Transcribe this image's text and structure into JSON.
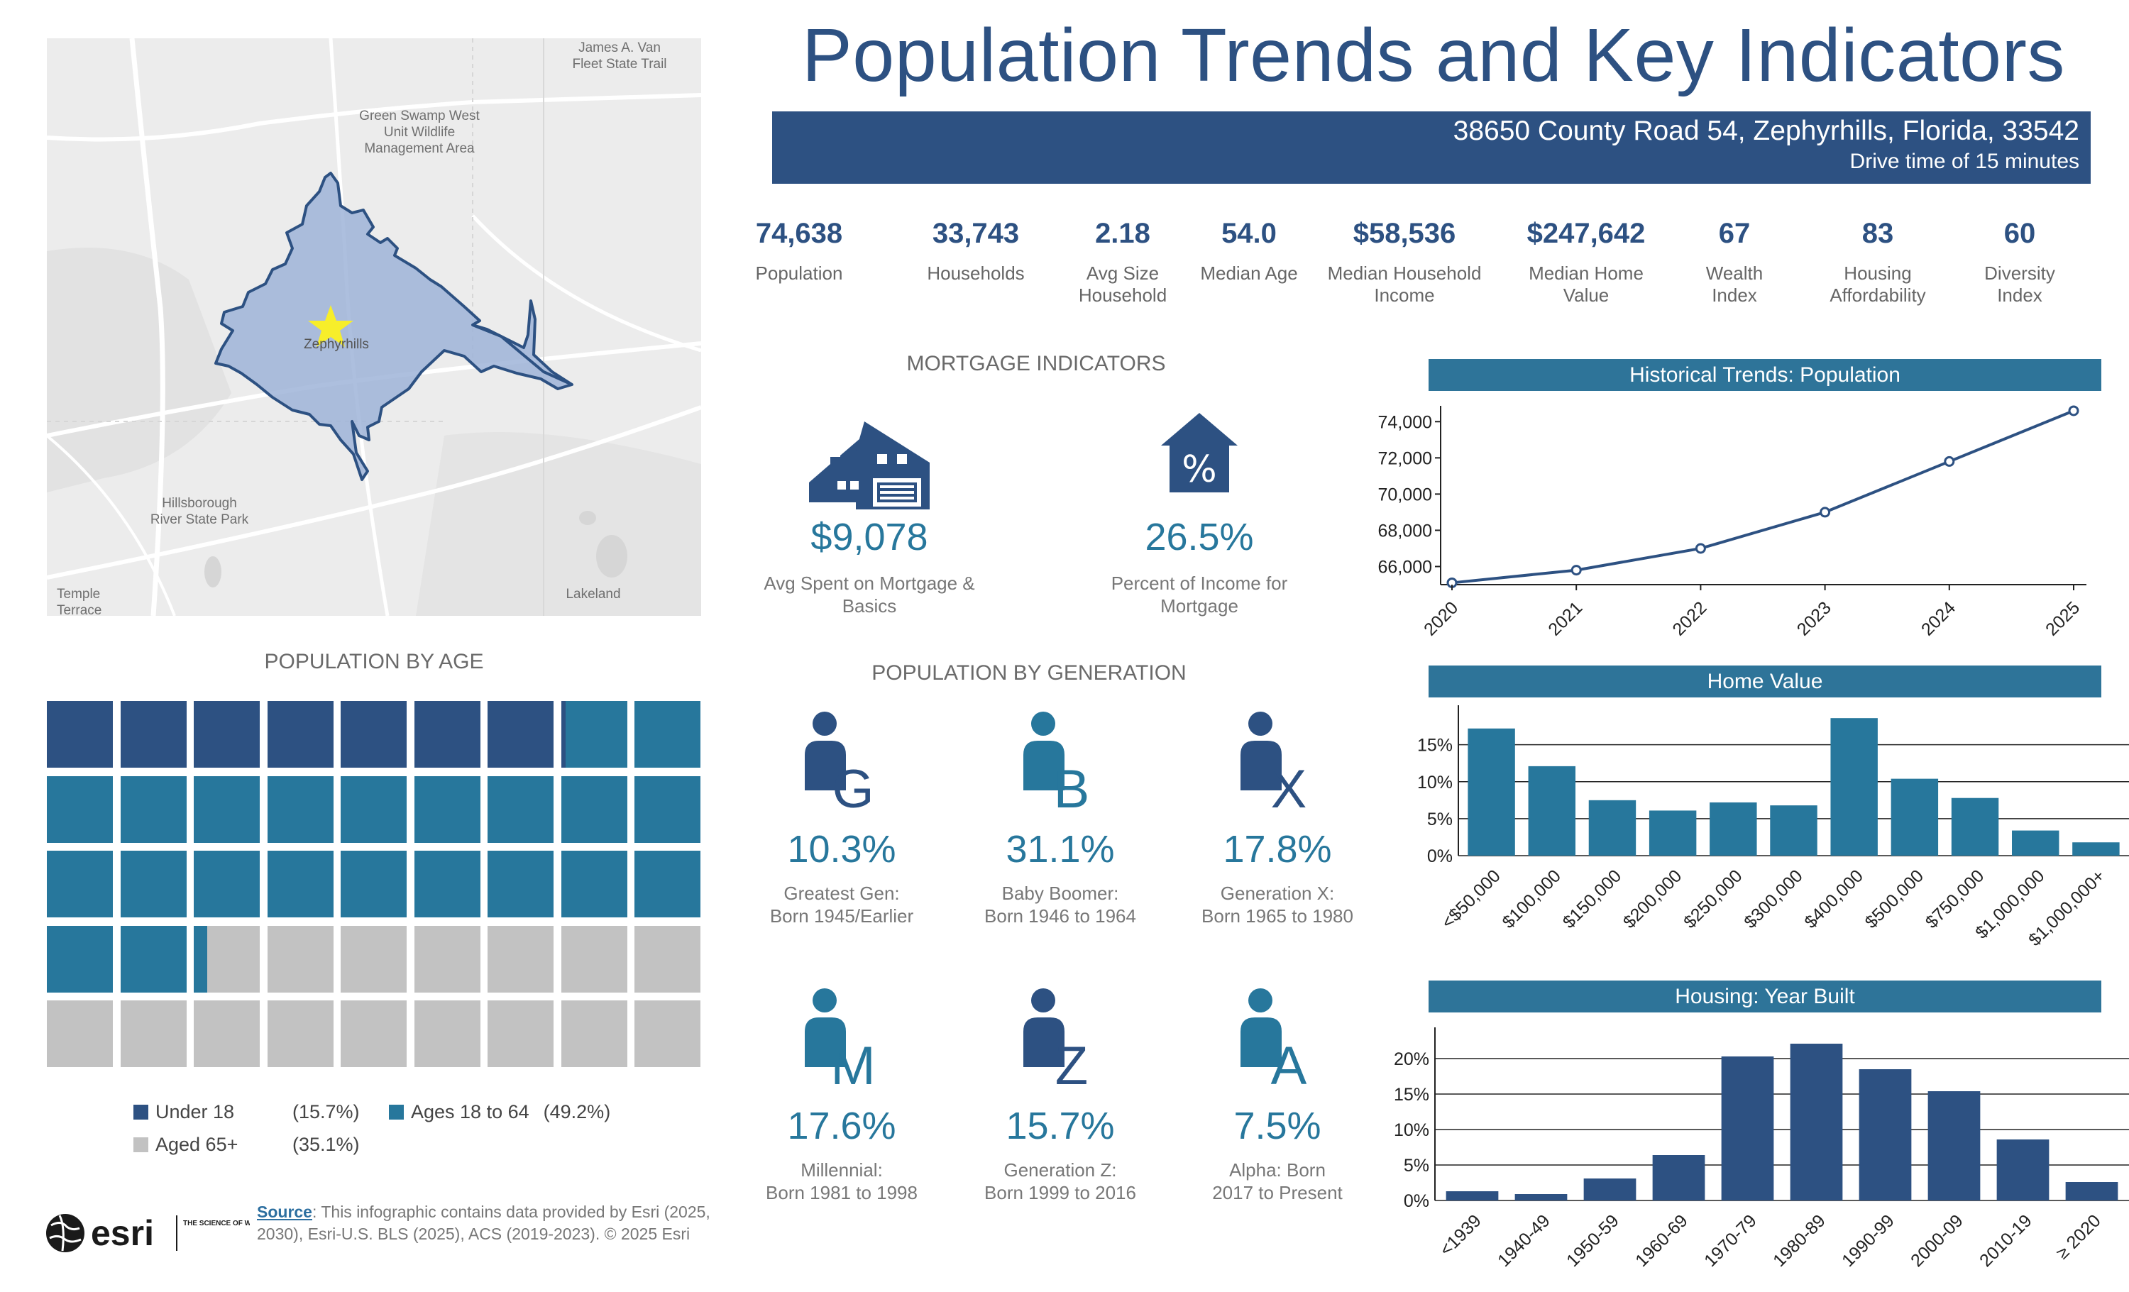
{
  "title": "Population Trends and Key Indicators",
  "address": "38650 County Road 54, Zephyrhills, Florida, 33542",
  "drive_time": "Drive time of 15 minutes",
  "map": {
    "labels": [
      "James A. Van Fleet State Trail",
      "Green Swamp West Unit Wildlife Management Area",
      "Zephyrhills",
      "Hillsborough River State Park",
      "Temple Terrace",
      "Lakeland"
    ]
  },
  "kpis": [
    {
      "value": "74,638",
      "label": "Population"
    },
    {
      "value": "33,743",
      "label": "Households"
    },
    {
      "value": "2.18",
      "label": "Avg Size Household"
    },
    {
      "value": "54.0",
      "label": "Median Age"
    },
    {
      "value": "$58,536",
      "label": "Median Household Income"
    },
    {
      "value": "$247,642",
      "label": "Median Home Value"
    },
    {
      "value": "67",
      "label": "Wealth Index"
    },
    {
      "value": "83",
      "label": "Housing Affordability"
    },
    {
      "value": "60",
      "label": "Diversity Index"
    }
  ],
  "mortgage": {
    "title": "MORTGAGE INDICATORS",
    "spent_value": "$9,078",
    "spent_label": "Avg Spent on Mortgage & Basics",
    "percent_value": "26.5%",
    "percent_label": "Percent of Income for Mortgage",
    "percent_icon_symbol": "%"
  },
  "age": {
    "title": "POPULATION BY AGE",
    "under18_label": "Under 18",
    "under18_pct": "(15.7%)",
    "under18_fraction": 0.157,
    "adult_label": "Ages 18 to 64",
    "adult_pct": "(49.2%)",
    "adult_fraction": 0.492,
    "senior_label": "Aged 65+",
    "senior_pct": "(35.1%)",
    "senior_fraction": 0.351,
    "colors": {
      "under18": "#2d5182",
      "adult": "#27779c",
      "senior": "#c2c2c2"
    }
  },
  "generation": {
    "title": "POPULATION BY GENERATION",
    "items": [
      {
        "letter": "G",
        "pct": "10.3%",
        "line1": "Greatest Gen:",
        "line2": "Born 1945/Earlier",
        "icon_color": "#2d5182"
      },
      {
        "letter": "B",
        "pct": "31.1%",
        "line1": "Baby Boomer:",
        "line2": "Born 1946 to 1964",
        "icon_color": "#27779c"
      },
      {
        "letter": "X",
        "pct": "17.8%",
        "line1": "Generation X:",
        "line2": "Born 1965 to 1980",
        "icon_color": "#2d5182"
      },
      {
        "letter": "M",
        "pct": "17.6%",
        "line1": "Millennial:",
        "line2": "Born 1981 to 1998",
        "icon_color": "#27779c"
      },
      {
        "letter": "Z",
        "pct": "15.7%",
        "line1": "Generation Z:",
        "line2": "Born 1999 to 2016",
        "icon_color": "#2d5182"
      },
      {
        "letter": "A",
        "pct": "7.5%",
        "line1": "Alpha:  Born",
        "line2": "2017 to Present",
        "icon_color": "#27779c"
      }
    ]
  },
  "chart_data": [
    {
      "type": "line",
      "title": "Historical Trends: Population",
      "x": [
        "2020",
        "2021",
        "2022",
        "2023",
        "2024",
        "2025"
      ],
      "values": [
        65100,
        65800,
        67000,
        69000,
        71800,
        74600
      ],
      "ylim": [
        65000,
        74638
      ],
      "yticks": [
        "66,000",
        "68,000",
        "70,000",
        "72,000",
        "74,000"
      ],
      "ytick_values": [
        66000,
        68000,
        70000,
        72000,
        74000
      ],
      "color": "#2d5182"
    },
    {
      "type": "bar",
      "title": "Home Value",
      "categories": [
        "<$50,000",
        "$100,000",
        "$150,000",
        "$200,000",
        "$250,000",
        "$300,000",
        "$400,000",
        "$500,000",
        "$750,000",
        "$1,000,000",
        "$1,000,000+"
      ],
      "values": [
        17.2,
        12.1,
        7.5,
        6.1,
        7.2,
        6.8,
        18.6,
        10.4,
        7.8,
        3.4,
        1.8
      ],
      "ylim": [
        0,
        19
      ],
      "yticks": [
        "0%",
        "5%",
        "10%",
        "15%"
      ],
      "ytick_values": [
        0,
        5,
        10,
        15
      ],
      "grid": true,
      "color": "#27779c"
    },
    {
      "type": "bar",
      "title": "Housing: Year Built",
      "categories": [
        "<1939",
        "1940-49",
        "1950-59",
        "1960-69",
        "1970-79",
        "1980-89",
        "1990-99",
        "2000-09",
        "2010-19",
        "≥ 2020"
      ],
      "values": [
        1.3,
        0.9,
        3.1,
        6.4,
        20.3,
        22.1,
        18.5,
        15.4,
        8.6,
        2.6
      ],
      "ylim": [
        0,
        23
      ],
      "yticks": [
        "0%",
        "5%",
        "10%",
        "15%",
        "20%"
      ],
      "ytick_values": [
        0,
        5,
        10,
        15,
        20
      ],
      "grid": true,
      "color": "#2d5182"
    }
  ],
  "footer": {
    "esri": "esri",
    "tagline": "THE SCIENCE OF WHERE",
    "source_label": "Source",
    "source_text": ": This infographic contains data provided by Esri (2025, 2030), Esri-U.S. BLS (2025), ACS (2019-2023). © 2025 Esri"
  }
}
